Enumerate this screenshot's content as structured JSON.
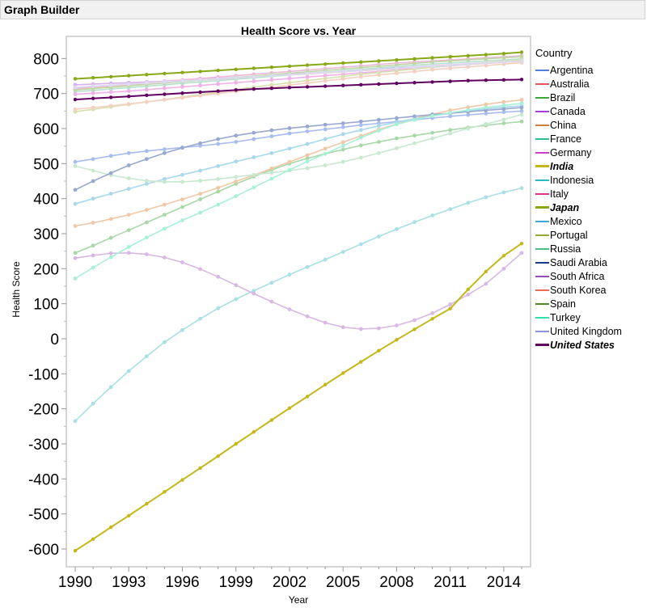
{
  "window": {
    "title": "Graph Builder"
  },
  "legend": {
    "title": "Country",
    "items": [
      {
        "label": "Argentina",
        "color": "#4f7fe0",
        "bold": false
      },
      {
        "label": "Australia",
        "color": "#e05a5a",
        "bold": false
      },
      {
        "label": "Brazil",
        "color": "#3ca83c",
        "bold": false
      },
      {
        "label": "Canada",
        "color": "#a040e0",
        "bold": false
      },
      {
        "label": "China",
        "color": "#d08038",
        "bold": false
      },
      {
        "label": "France",
        "color": "#30c090",
        "bold": false
      },
      {
        "label": "Germany",
        "color": "#d040c8",
        "bold": false
      },
      {
        "label": "India",
        "color": "#c4b818",
        "bold": true
      },
      {
        "label": "Indonesia",
        "color": "#30b8c0",
        "bold": false
      },
      {
        "label": "Italy",
        "color": "#e03090",
        "bold": false
      },
      {
        "label": "Japan",
        "color": "#88a818",
        "bold": true
      },
      {
        "label": "Mexico",
        "color": "#40a8d0",
        "bold": false
      },
      {
        "label": "Portugal",
        "color": "#98a830",
        "bold": false
      },
      {
        "label": "Russia",
        "color": "#50c080",
        "bold": false
      },
      {
        "label": "Saudi Arabia",
        "color": "#1a3a8a",
        "bold": false
      },
      {
        "label": "South Africa",
        "color": "#9050b0",
        "bold": false
      },
      {
        "label": "South Korea",
        "color": "#e87050",
        "bold": false
      },
      {
        "label": "Spain",
        "color": "#4a8a20",
        "bold": false
      },
      {
        "label": "Turkey",
        "color": "#30e0a8",
        "bold": false
      },
      {
        "label": "United Kingdom",
        "color": "#8898d0",
        "bold": false
      },
      {
        "label": "United States",
        "color": "#600060",
        "bold": true
      }
    ]
  },
  "chart_data": {
    "type": "line",
    "title": "Health Score vs. Year",
    "xlabel": "Year",
    "ylabel": "Health Score",
    "xlim": [
      1989.5,
      2015.5
    ],
    "ylim": [
      -650,
      840
    ],
    "xticks": [
      1990,
      1993,
      1996,
      1999,
      2002,
      2005,
      2008,
      2011,
      2014
    ],
    "yticks": [
      -600,
      -500,
      -400,
      -300,
      -200,
      -100,
      0,
      100,
      200,
      300,
      400,
      500,
      600,
      700,
      800
    ],
    "grid": false,
    "legend_position": "right",
    "x": [
      1990,
      1991,
      1992,
      1993,
      1994,
      1995,
      1996,
      1997,
      1998,
      1999,
      2000,
      2001,
      2002,
      2003,
      2004,
      2005,
      2006,
      2007,
      2008,
      2009,
      2010,
      2011,
      2012,
      2013,
      2014,
      2015
    ],
    "series": [
      {
        "name": "Argentina",
        "display": "#a8bcf0",
        "values": [
          505,
          513,
          522,
          530,
          536,
          541,
          546,
          551,
          556,
          562,
          570,
          578,
          586,
          592,
          598,
          604,
          610,
          615,
          620,
          625,
          630,
          635,
          639,
          643,
          647,
          650
        ]
      },
      {
        "name": "Australia",
        "display": "#f0c0c0",
        "values": [
          712,
          716,
          720,
          724,
          728,
          731,
          735,
          738,
          741,
          744,
          747,
          750,
          753,
          756,
          759,
          762,
          765,
          768,
          771,
          774,
          777,
          780,
          783,
          786,
          789,
          792
        ]
      },
      {
        "name": "Brazil",
        "display": "#a8d8a8",
        "values": [
          245,
          266,
          288,
          310,
          332,
          354,
          376,
          398,
          420,
          442,
          463,
          482,
          500,
          515,
          528,
          540,
          552,
          562,
          572,
          580,
          588,
          596,
          603,
          609,
          615,
          620
        ]
      },
      {
        "name": "Canada",
        "display": "#d8b0f0",
        "values": [
          725,
          727,
          729,
          731,
          733,
          735,
          737,
          740,
          743,
          746,
          749,
          752,
          755,
          758,
          761,
          764,
          767,
          770,
          773,
          776,
          779,
          782,
          785,
          788,
          791,
          794
        ]
      },
      {
        "name": "China",
        "display": "#f0c8a8",
        "values": [
          322,
          331,
          342,
          354,
          368,
          383,
          398,
          414,
          431,
          449,
          467,
          486,
          505,
          524,
          543,
          561,
          579,
          597,
          613,
          628,
          641,
          652,
          661,
          669,
          676,
          682
        ]
      },
      {
        "name": "France",
        "display": "#b8e0d0",
        "values": [
          705,
          709,
          713,
          717,
          721,
          725,
          729,
          733,
          737,
          741,
          745,
          749,
          753,
          757,
          761,
          765,
          769,
          773,
          777,
          781,
          784,
          787,
          790,
          793,
          796,
          799
        ]
      },
      {
        "name": "Germany",
        "display": "#f0b0e8",
        "values": [
          698,
          701,
          704,
          707,
          711,
          715,
          719,
          723,
          727,
          731,
          735,
          739,
          743,
          747,
          751,
          755,
          759,
          763,
          767,
          771,
          775,
          779,
          783,
          787,
          791,
          795
        ]
      },
      {
        "name": "India",
        "display": "#c4b818",
        "values": [
          -605,
          -572,
          -538,
          -505,
          -471,
          -437,
          -403,
          -369,
          -335,
          -300,
          -266,
          -232,
          -198,
          -165,
          -131,
          -98,
          -66,
          -34,
          -3,
          27,
          57,
          86,
          141,
          192,
          237,
          272
        ]
      },
      {
        "name": "Indonesia",
        "display": "#a8d8ec",
        "values": [
          385,
          400,
          414,
          428,
          442,
          456,
          468,
          480,
          493,
          506,
          518,
          530,
          543,
          556,
          570,
          584,
          596,
          608,
          618,
          628,
          636,
          643,
          650,
          656,
          661,
          665
        ]
      },
      {
        "name": "Italy",
        "display": "#f0b8d8",
        "values": [
          715,
          719,
          723,
          727,
          731,
          735,
          739,
          743,
          747,
          751,
          755,
          759,
          763,
          767,
          771,
          775,
          779,
          783,
          787,
          790,
          793,
          796,
          799,
          802,
          805,
          808
        ]
      },
      {
        "name": "Japan",
        "display": "#88a818",
        "values": [
          742,
          745,
          748,
          751,
          754,
          757,
          760,
          763,
          766,
          769,
          772,
          775,
          778,
          781,
          784,
          787,
          790,
          793,
          796,
          799,
          802,
          805,
          808,
          811,
          814,
          818
        ]
      },
      {
        "name": "Mexico",
        "display": "#a8e0e4",
        "values": [
          -235,
          -185,
          -138,
          -92,
          -50,
          -10,
          25,
          57,
          87,
          113,
          137,
          160,
          183,
          205,
          226,
          248,
          270,
          292,
          313,
          333,
          352,
          370,
          388,
          404,
          418,
          430
        ]
      },
      {
        "name": "Portugal",
        "display": "#d8e0b0",
        "values": [
          648,
          655,
          662,
          669,
          676,
          683,
          690,
          697,
          704,
          711,
          718,
          725,
          731,
          737,
          743,
          749,
          755,
          760,
          765,
          770,
          775,
          780,
          784,
          788,
          792,
          796
        ]
      },
      {
        "name": "Russia",
        "display": "#c8e8d0",
        "values": [
          493,
          480,
          467,
          458,
          451,
          448,
          448,
          451,
          456,
          462,
          468,
          474,
          480,
          487,
          495,
          505,
          517,
          530,
          544,
          558,
          572,
          586,
          600,
          613,
          626,
          640
        ]
      },
      {
        "name": "Saudi Arabia",
        "display": "#98a8d0",
        "values": [
          425,
          450,
          473,
          495,
          513,
          530,
          545,
          558,
          570,
          580,
          588,
          595,
          601,
          606,
          611,
          615,
          620,
          625,
          630,
          635,
          640,
          644,
          648,
          652,
          656,
          660
        ]
      },
      {
        "name": "South Africa",
        "display": "#d8b8e4",
        "values": [
          230,
          238,
          244,
          245,
          241,
          232,
          218,
          199,
          177,
          153,
          129,
          106,
          84,
          64,
          46,
          33,
          28,
          30,
          38,
          53,
          73,
          98,
          126,
          157,
          200,
          245
        ]
      },
      {
        "name": "South Korea",
        "display": "#f4d0c0",
        "values": [
          655,
          660,
          665,
          670,
          676,
          682,
          688,
          694,
          700,
          706,
          712,
          718,
          724,
          730,
          736,
          742,
          748,
          753,
          758,
          763,
          768,
          772,
          776,
          780,
          784,
          788
        ]
      },
      {
        "name": "Spain",
        "display": "#c0d8a8",
        "values": [
          710,
          714,
          718,
          722,
          726,
          730,
          734,
          738,
          742,
          746,
          750,
          754,
          758,
          762,
          766,
          770,
          774,
          778,
          782,
          786,
          790,
          793,
          796,
          799,
          802,
          805
        ]
      },
      {
        "name": "Turkey",
        "display": "#a8f0d8",
        "values": [
          172,
          203,
          233,
          262,
          289,
          314,
          338,
          360,
          383,
          407,
          432,
          457,
          482,
          506,
          528,
          551,
          574,
          594,
          612,
          625,
          636,
          645,
          653,
          660,
          666,
          672
        ]
      },
      {
        "name": "United Kingdom",
        "display": "#dcdcf0",
        "values": [
          718,
          721,
          724,
          727,
          730,
          733,
          736,
          739,
          742,
          745,
          748,
          751,
          754,
          757,
          760,
          763,
          766,
          769,
          772,
          775,
          778,
          781,
          784,
          787,
          790,
          793
        ]
      },
      {
        "name": "United States",
        "display": "#600060",
        "values": [
          683,
          686,
          689,
          692,
          695,
          698,
          701,
          704,
          707,
          710,
          713,
          715,
          717,
          719,
          721,
          723,
          725,
          727,
          729,
          731,
          733,
          735,
          737,
          738,
          739,
          740
        ]
      }
    ]
  }
}
